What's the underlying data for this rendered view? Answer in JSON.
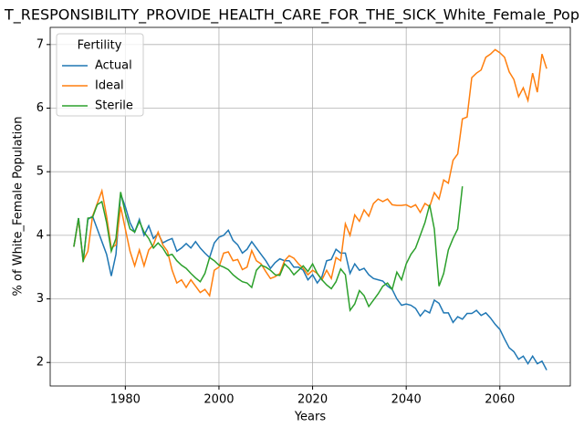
{
  "chart_data": {
    "type": "line",
    "title": "T_RESPONSIBILITY_PROVIDE_HEALTH_CARE_FOR_THE_SICK_White_Female_Pop",
    "xlabel": "Years",
    "ylabel": "% of White_Female Population",
    "legend_title": "Fertility",
    "legend": "upper left",
    "grid": true,
    "x": [
      1969,
      1970,
      1971,
      1972,
      1973,
      1974,
      1975,
      1976,
      1977,
      1978,
      1979,
      1980,
      1981,
      1982,
      1983,
      1984,
      1985,
      1986,
      1987,
      1988,
      1989,
      1990,
      1991,
      1992,
      1993,
      1994,
      1995,
      1996,
      1997,
      1998,
      1999,
      2000,
      2001,
      2002,
      2003,
      2004,
      2005,
      2006,
      2007,
      2008,
      2009,
      2010,
      2011,
      2012,
      2013,
      2014,
      2015,
      2016,
      2017,
      2018,
      2019,
      2020,
      2021,
      2022,
      2023,
      2024,
      2025,
      2026,
      2027,
      2028,
      2029,
      2030,
      2031,
      2032,
      2033,
      2034,
      2035,
      2036,
      2037,
      2038,
      2039,
      2040,
      2041,
      2042,
      2043,
      2044,
      2045,
      2046,
      2047,
      2048,
      2049,
      2050,
      2051,
      2052,
      2053,
      2054,
      2055,
      2056,
      2057,
      2058,
      2059,
      2060,
      2061,
      2062,
      2063,
      2064,
      2065,
      2066,
      2067,
      2068,
      2069,
      2070
    ],
    "series": [
      {
        "name": "Actual",
        "color": "#1f77b4",
        "values": [
          3.82,
          4.27,
          3.6,
          4.25,
          4.3,
          4.1,
          3.9,
          3.7,
          3.36,
          3.7,
          4.65,
          4.45,
          4.2,
          4.05,
          4.25,
          4.0,
          4.15,
          3.95,
          4.03,
          3.88,
          3.92,
          3.95,
          3.75,
          3.8,
          3.87,
          3.8,
          3.9,
          3.8,
          3.72,
          3.65,
          3.88,
          3.97,
          4.0,
          4.08,
          3.92,
          3.85,
          3.72,
          3.78,
          3.9,
          3.8,
          3.7,
          3.6,
          3.48,
          3.57,
          3.63,
          3.6,
          3.6,
          3.5,
          3.5,
          3.45,
          3.3,
          3.38,
          3.25,
          3.35,
          3.6,
          3.62,
          3.78,
          3.72,
          3.72,
          3.4,
          3.55,
          3.45,
          3.48,
          3.38,
          3.32,
          3.3,
          3.28,
          3.2,
          3.15,
          3.0,
          2.9,
          2.92,
          2.9,
          2.85,
          2.73,
          2.82,
          2.78,
          2.98,
          2.93,
          2.78,
          2.78,
          2.63,
          2.72,
          2.68,
          2.77,
          2.77,
          2.82,
          2.74,
          2.78,
          2.7,
          2.6,
          2.52,
          2.37,
          2.23,
          2.17,
          2.05,
          2.1,
          1.98,
          2.1,
          1.98,
          2.02,
          1.88
        ]
      },
      {
        "name": "Ideal",
        "color": "#ff7f0e",
        "values": [
          3.82,
          4.25,
          3.6,
          3.75,
          4.3,
          4.5,
          4.7,
          4.3,
          3.8,
          3.85,
          4.45,
          4.1,
          3.75,
          3.52,
          3.77,
          3.52,
          3.77,
          3.85,
          4.05,
          3.85,
          3.75,
          3.45,
          3.25,
          3.3,
          3.18,
          3.3,
          3.2,
          3.1,
          3.15,
          3.05,
          3.45,
          3.5,
          3.72,
          3.74,
          3.6,
          3.62,
          3.46,
          3.5,
          3.76,
          3.6,
          3.55,
          3.43,
          3.32,
          3.35,
          3.4,
          3.6,
          3.68,
          3.64,
          3.55,
          3.48,
          3.38,
          3.45,
          3.4,
          3.3,
          3.45,
          3.32,
          3.65,
          3.6,
          4.18,
          4.0,
          4.32,
          4.22,
          4.4,
          4.3,
          4.5,
          4.57,
          4.53,
          4.57,
          4.48,
          4.47,
          4.47,
          4.48,
          4.44,
          4.48,
          4.36,
          4.5,
          4.45,
          4.67,
          4.57,
          4.87,
          4.82,
          5.18,
          5.28,
          5.83,
          5.86,
          6.48,
          6.55,
          6.6,
          6.8,
          6.85,
          6.92,
          6.87,
          6.8,
          6.57,
          6.45,
          6.18,
          6.32,
          6.12,
          6.55,
          6.25,
          6.85,
          6.62
        ]
      },
      {
        "name": "Sterile",
        "color": "#2ca02c",
        "values": [
          3.82,
          4.27,
          3.58,
          4.27,
          4.28,
          4.48,
          4.53,
          4.2,
          3.75,
          3.95,
          4.68,
          4.35,
          4.1,
          4.05,
          4.22,
          4.05,
          3.95,
          3.8,
          3.88,
          3.8,
          3.68,
          3.7,
          3.6,
          3.53,
          3.48,
          3.4,
          3.33,
          3.27,
          3.4,
          3.65,
          3.6,
          3.53,
          3.5,
          3.46,
          3.38,
          3.32,
          3.27,
          3.25,
          3.18,
          3.45,
          3.53,
          3.5,
          3.45,
          3.38,
          3.37,
          3.55,
          3.48,
          3.38,
          3.45,
          3.52,
          3.43,
          3.55,
          3.4,
          3.3,
          3.22,
          3.16,
          3.27,
          3.47,
          3.38,
          2.82,
          2.92,
          3.13,
          3.05,
          2.88,
          2.98,
          3.08,
          3.2,
          3.25,
          3.15,
          3.42,
          3.3,
          3.55,
          3.7,
          3.8,
          4.0,
          4.2,
          4.48,
          4.1,
          3.2,
          3.4,
          3.77,
          3.95,
          4.1,
          4.77,
          null,
          null,
          null,
          null,
          null,
          null,
          null,
          null,
          null,
          null,
          null,
          null,
          null,
          null,
          null,
          null,
          null,
          null
        ]
      }
    ],
    "xlim": [
      1963.95,
      2075.05
    ],
    "xticks": [
      1980,
      2000,
      2020,
      2040,
      2060
    ],
    "ylim": [
      1.63,
      7.27
    ],
    "yticks": [
      2,
      3,
      4,
      5,
      6,
      7
    ]
  }
}
